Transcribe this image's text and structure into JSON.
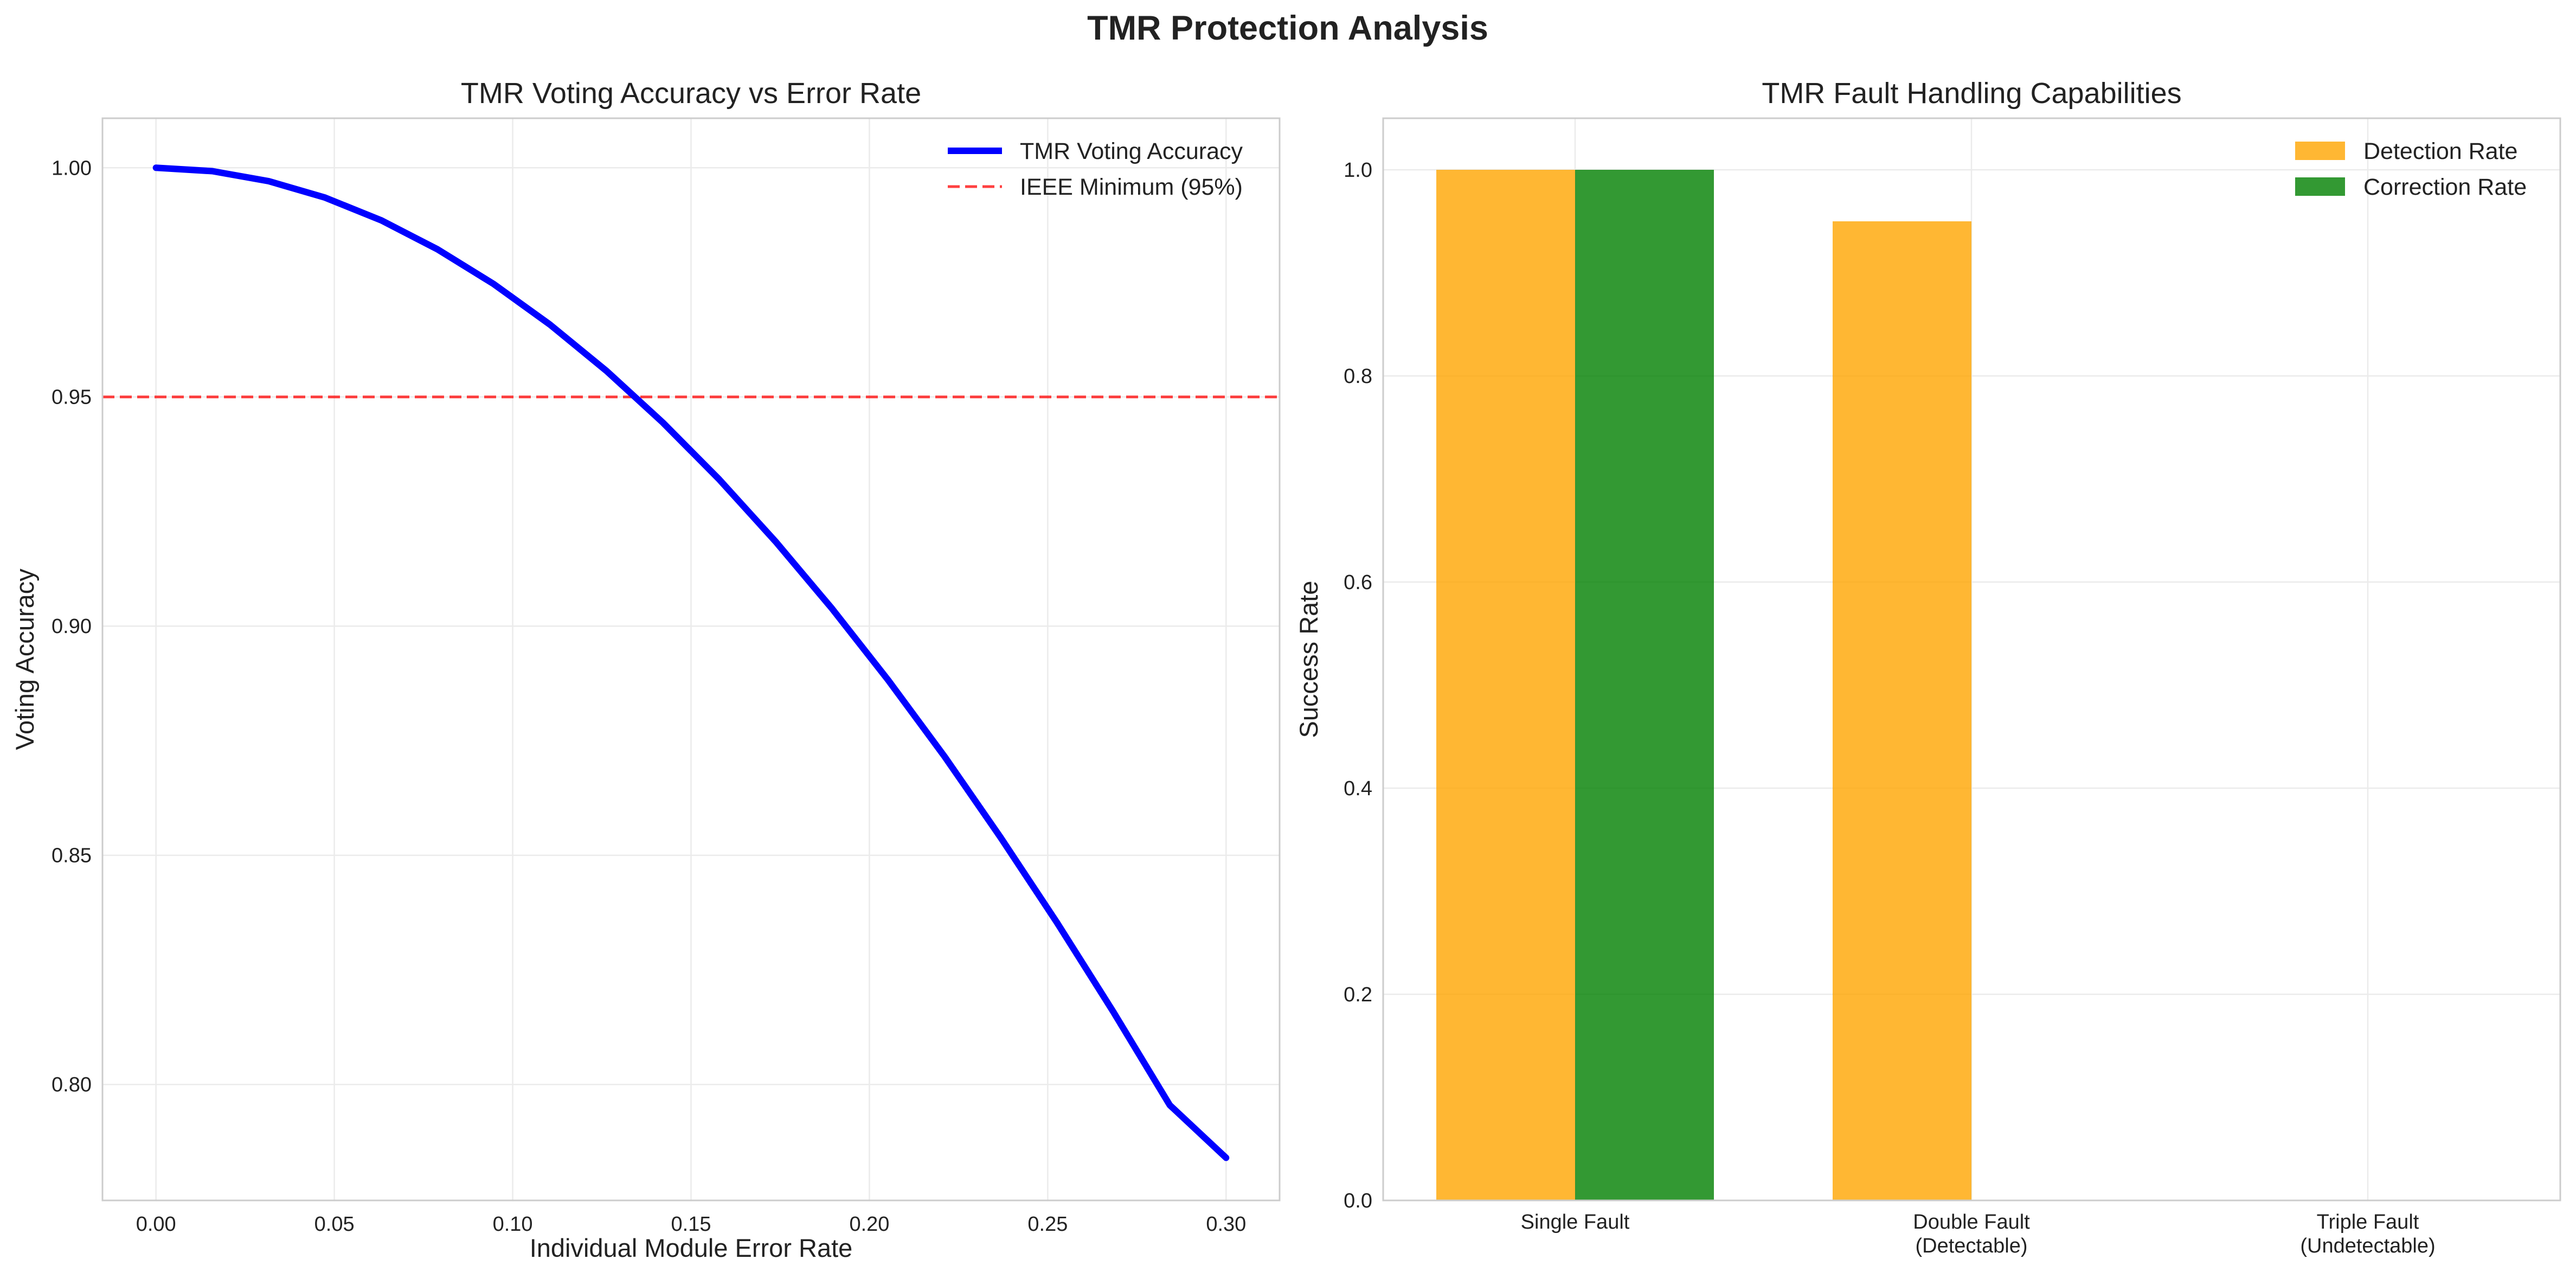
{
  "figure": {
    "suptitle": "TMR Protection Analysis"
  },
  "chart_data": [
    {
      "type": "line",
      "title": "TMR Voting Accuracy vs Error Rate",
      "xlabel": "Individual Module Error Rate",
      "ylabel": "Voting Accuracy",
      "xlim": [
        -0.015,
        0.315
      ],
      "ylim": [
        0.7747,
        1.0108
      ],
      "xticks": [
        "0.00",
        "0.05",
        "0.10",
        "0.15",
        "0.20",
        "0.25",
        "0.30"
      ],
      "yticks": [
        "0.80",
        "0.85",
        "0.90",
        "0.95",
        "1.00"
      ],
      "grid": true,
      "legend_position": "top-right",
      "series": [
        {
          "name": "TMR Voting Accuracy",
          "color": "#0000ff",
          "style": "solid",
          "x": [
            0.0,
            0.0158,
            0.0316,
            0.0474,
            0.0632,
            0.0789,
            0.0947,
            0.1105,
            0.1263,
            0.1421,
            0.1579,
            0.1737,
            0.1895,
            0.2053,
            0.2211,
            0.2368,
            0.2526,
            0.2684,
            0.2842,
            0.3
          ],
          "y": [
            1.0,
            0.99926,
            0.99707,
            0.99349,
            0.98852,
            0.98222,
            0.97462,
            0.96576,
            0.95568,
            0.94441,
            0.93199,
            0.91846,
            0.90384,
            0.88818,
            0.87152,
            0.85388,
            0.83531,
            0.81584,
            0.79551,
            0.784
          ]
        },
        {
          "name": "IEEE Minimum (95%)",
          "color": "#ff0000",
          "style": "dashed",
          "hline": 0.95
        }
      ]
    },
    {
      "type": "bar",
      "title": "TMR Fault Handling Capabilities",
      "xlabel": "",
      "ylabel": "Success Rate",
      "ylim": [
        0,
        1.05
      ],
      "yticks": [
        "0.0",
        "0.2",
        "0.4",
        "0.6",
        "0.8",
        "1.0"
      ],
      "grid": true,
      "legend_position": "top-right",
      "categories": [
        [
          "Single Fault"
        ],
        [
          "Double Fault",
          "(Detectable)"
        ],
        [
          "Triple Fault",
          "(Undetectable)"
        ]
      ],
      "series": [
        {
          "name": "Detection Rate",
          "color": "#ffa500",
          "values": [
            1.0,
            0.95,
            0.0
          ]
        },
        {
          "name": "Correction Rate",
          "color": "#008000",
          "values": [
            1.0,
            0.0,
            0.0
          ]
        }
      ]
    }
  ]
}
